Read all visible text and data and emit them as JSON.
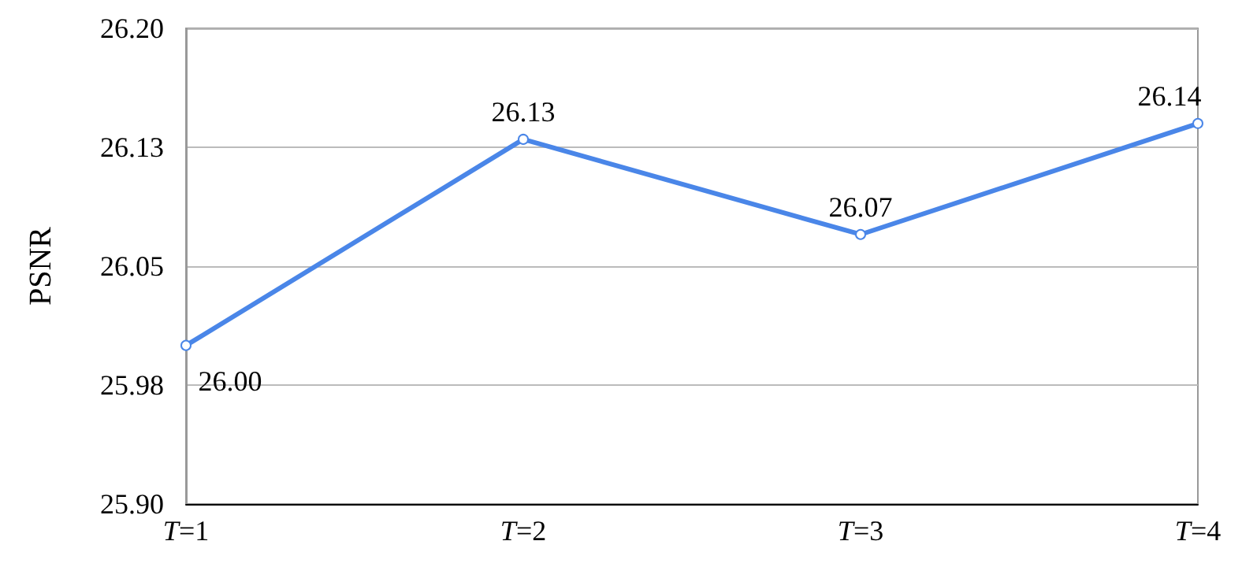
{
  "chart_data": {
    "type": "line",
    "ylabel": "PSNR",
    "categories": [
      "T=1",
      "T=2",
      "T=3",
      "T=4"
    ],
    "series": [
      {
        "color": "#4a86e8",
        "values": [
          26.0,
          26.13,
          26.07,
          26.14
        ],
        "value_labels": [
          "26.00",
          "26.13",
          "26.07",
          "26.14"
        ]
      }
    ],
    "ylim": [
      25.9,
      26.2
    ],
    "yticks": [
      {
        "value": 25.9,
        "label": "25.90"
      },
      {
        "value": 25.975,
        "label": "25.98"
      },
      {
        "value": 26.05,
        "label": "26.05"
      },
      {
        "value": 26.125,
        "label": "26.13"
      },
      {
        "value": 26.2,
        "label": "26.20"
      }
    ],
    "grid": "y",
    "marker": "circle",
    "line_style": "solid"
  }
}
